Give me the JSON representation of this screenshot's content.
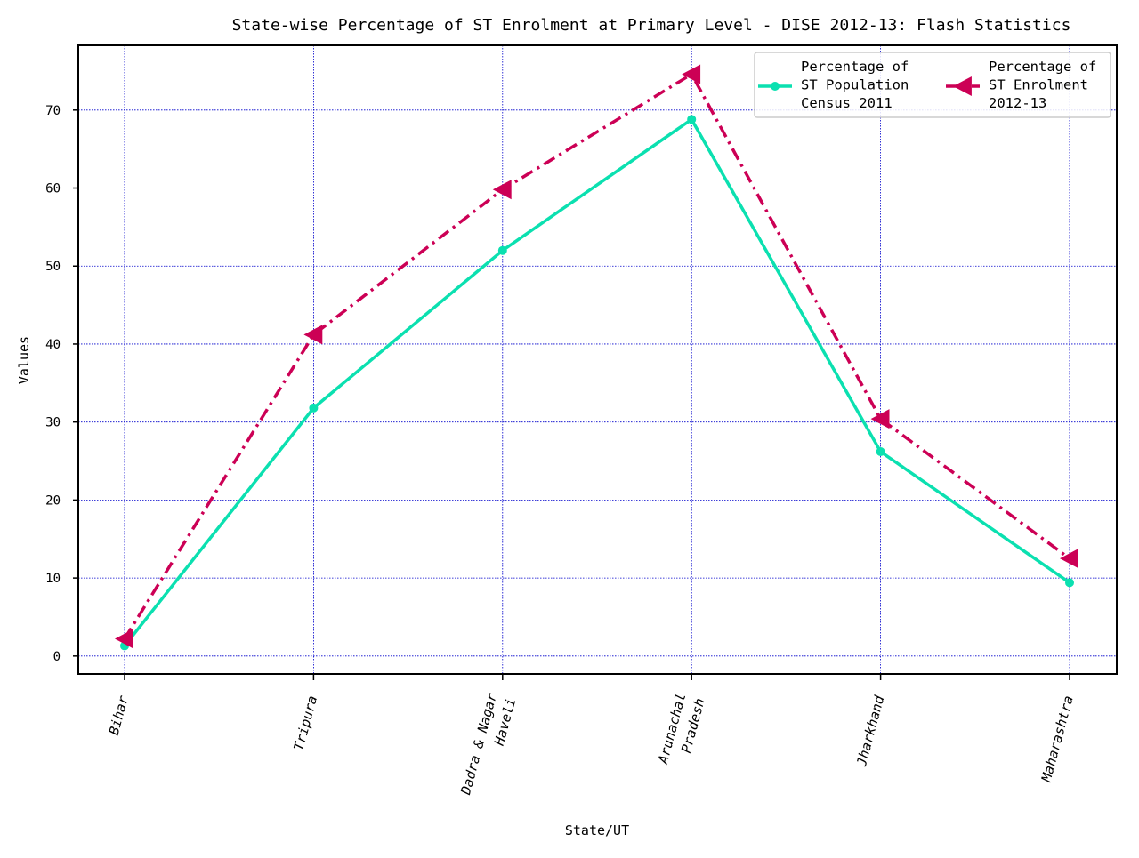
{
  "chart_data": {
    "type": "line",
    "title": "State-wise Percentage of ST Enrolment at Primary Level - DISE 2012-13: Flash Statistics",
    "xlabel": "State/UT",
    "ylabel": "Values",
    "categories": [
      [
        "Bihar"
      ],
      [
        "Tripura"
      ],
      [
        "Dadra & Nagar",
        "Haveli"
      ],
      [
        "Arunachal",
        "Pradesh"
      ],
      [
        "Jharkhand"
      ],
      [
        "Maharashtra"
      ]
    ],
    "ylim": [
      -2.3,
      78.3
    ],
    "yticks": [
      0,
      10,
      20,
      30,
      40,
      50,
      60,
      70
    ],
    "grid": true,
    "legend_position": "top-right",
    "series": [
      {
        "name": [
          "Percentage of",
          "ST Population",
          "Census 2011"
        ],
        "values": [
          1.3,
          31.8,
          52.0,
          68.8,
          26.2,
          9.4
        ],
        "color": "#0be0b0",
        "line_style": "solid",
        "marker": "circle"
      },
      {
        "name": [
          "Percentage of",
          "ST Enrolment",
          "2012-13"
        ],
        "values": [
          2.2,
          41.2,
          59.8,
          74.6,
          30.4,
          12.5
        ],
        "color": "#cc0055",
        "line_style": "dash-dot",
        "marker": "triangle-left"
      }
    ]
  }
}
